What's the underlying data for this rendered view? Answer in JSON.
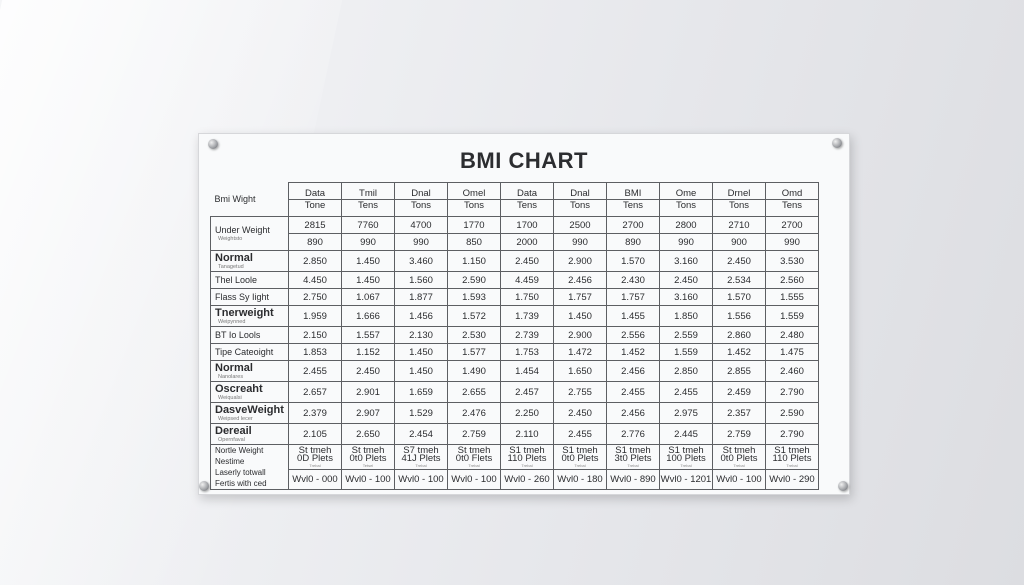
{
  "title": "BMI CHART",
  "header": {
    "row_label": "Bmi Wight",
    "columns": [
      {
        "top": "Data",
        "bottom": "Tone"
      },
      {
        "top": "Tmil",
        "bottom": "Tens"
      },
      {
        "top": "Dnal",
        "bottom": "Tons"
      },
      {
        "top": "Omel",
        "bottom": "Tons"
      },
      {
        "top": "Data",
        "bottom": "Tens"
      },
      {
        "top": "Dnal",
        "bottom": "Tons"
      },
      {
        "top": "BMI",
        "bottom": "Tens"
      },
      {
        "top": "Ome",
        "bottom": "Tons"
      },
      {
        "top": "Drnel",
        "bottom": "Tons"
      },
      {
        "top": "Omd",
        "bottom": "Tens"
      }
    ]
  },
  "rows": [
    {
      "label": "Under Weight",
      "sub": "Weightsto",
      "label_big": false,
      "span": 2,
      "values": [
        "2815",
        "7760",
        "4700",
        "1770",
        "1700",
        "2500",
        "2700",
        "2800",
        "2710",
        "2700"
      ],
      "values2": [
        "890",
        "990",
        "990",
        "850",
        "2000",
        "990",
        "890",
        "990",
        "900",
        "990"
      ]
    },
    {
      "label": "Normal",
      "sub": "Tanagetud",
      "label_big": true,
      "values": [
        "2.850",
        "1.450",
        "3.460",
        "1.150",
        "2.450",
        "2.900",
        "1.570",
        "3.160",
        "2.450",
        "3.530"
      ]
    },
    {
      "label": "Thel Loole",
      "sub": "",
      "label_big": false,
      "values": [
        "4.450",
        "1.450",
        "1.560",
        "2.590",
        "4.459",
        "2.456",
        "2.430",
        "2.450",
        "2.534",
        "2.560"
      ]
    },
    {
      "label": "Flass Sy Iight",
      "sub": "",
      "label_big": false,
      "values": [
        "2.750",
        "1.067",
        "1.877",
        "1.593",
        "1.750",
        "1.757",
        "1.757",
        "3.160",
        "1.570",
        "1.555"
      ]
    },
    {
      "label": "Tnerweight",
      "sub": "Weipynned",
      "label_big": true,
      "values": [
        "1.959",
        "1.666",
        "1.456",
        "1.572",
        "1.739",
        "1.450",
        "1.455",
        "1.850",
        "1.556",
        "1.559"
      ]
    },
    {
      "label": "BT Io Lools",
      "sub": "",
      "label_big": false,
      "values": [
        "2.150",
        "1.557",
        "2.130",
        "2.530",
        "2.739",
        "2.900",
        "2.556",
        "2.559",
        "2.860",
        "2.480"
      ]
    },
    {
      "label": "Tipe Cateoight",
      "sub": "",
      "label_big": false,
      "values": [
        "1.853",
        "1.152",
        "1.450",
        "1.577",
        "1.753",
        "1.472",
        "1.452",
        "1.559",
        "1.452",
        "1.475"
      ]
    },
    {
      "label": "Normal",
      "sub": "Nanolares",
      "label_big": true,
      "values": [
        "2.455",
        "2.450",
        "1.450",
        "1.490",
        "1.454",
        "1.650",
        "2.456",
        "2.850",
        "2.855",
        "2.460"
      ]
    },
    {
      "label": "Oscreaht",
      "sub": "Weiqualsi",
      "label_big": true,
      "values": [
        "2.657",
        "2.901",
        "1.659",
        "2.655",
        "2.457",
        "2.755",
        "2.455",
        "2.455",
        "2.459",
        "2.790"
      ]
    },
    {
      "label": "DasveWeight",
      "sub": "Weipsed lecer",
      "label_big": true,
      "values": [
        "2.379",
        "2.907",
        "1.529",
        "2.476",
        "2.250",
        "2.450",
        "2.456",
        "2.975",
        "2.357",
        "2.590"
      ]
    },
    {
      "label": "Dereail",
      "sub": "Opernfaval",
      "label_big": true,
      "values": [
        "2.105",
        "2.650",
        "2.454",
        "2.759",
        "2.110",
        "2.455",
        "2.776",
        "2.445",
        "2.759",
        "2.790"
      ]
    }
  ],
  "footer": {
    "label_lines": [
      "Nortle Weight",
      "Nestime",
      "Laserly totwall",
      "Fertis with ced"
    ],
    "cells": [
      {
        "line1": "St tmeh",
        "line2": "0D Plets",
        "small": "Trebal",
        "bottom": "Wvl0 - 000"
      },
      {
        "line1": "St tmeh",
        "line2": "0t0 Plets",
        "small": "Tetsel",
        "bottom": "Wvl0 - 100"
      },
      {
        "line1": "S7 tmeh",
        "line2": "41J Plets",
        "small": "Trebal",
        "bottom": "Wvl0 - 100"
      },
      {
        "line1": "St tmeh",
        "line2": "0t0 Flets",
        "small": "Trebal",
        "bottom": "Wvl0 - 100"
      },
      {
        "line1": "S1 tmeh",
        "line2": "110 Plets",
        "small": "Trebal",
        "bottom": "Wvl0 - 260"
      },
      {
        "line1": "S1 tmeh",
        "line2": "0t0 Plets",
        "small": "Trebal",
        "bottom": "Wvl0 - 180"
      },
      {
        "line1": "S1 tmeh",
        "line2": "3t0 Plets",
        "small": "Trebal",
        "bottom": "Wvl0 - 890"
      },
      {
        "line1": "S1 tmeh",
        "line2": "100 Plets",
        "small": "Trebal",
        "bottom": "Wvl0 - 1201"
      },
      {
        "line1": "St tmeh",
        "line2": "0t0 Plets",
        "small": "Trebal",
        "bottom": "Wvl0 - 100"
      },
      {
        "line1": "S1 tmeh",
        "line2": "110 Plets",
        "small": "Trebal",
        "bottom": "Wvl0 - 290"
      }
    ]
  }
}
